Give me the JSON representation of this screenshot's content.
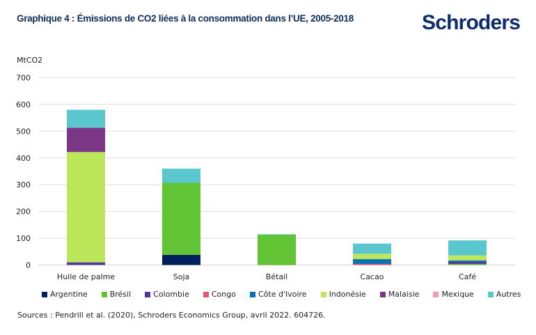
{
  "header": {
    "title": "Graphique 4 : Émissions de CO2 liées à la consommation dans l’UE, 2005-2018",
    "logo_text": "Schroders"
  },
  "source": "Sources : Pendrill et al. (2020), Schroders Economics Group, avril 2022. 604726.",
  "chart_data": {
    "type": "bar",
    "stacked": true,
    "title": "Graphique 4 : Émissions de CO2 liées à la consommation dans l’UE, 2005-2018",
    "xlabel": "",
    "ylabel": "MtCO2",
    "ylim": [
      0,
      700
    ],
    "yticks": [
      0,
      100,
      200,
      300,
      400,
      500,
      600,
      700
    ],
    "grid": true,
    "legend_position": "bottom",
    "categories": [
      "Huile de palme",
      "Soja",
      "Bétail",
      "Cacao",
      "Café"
    ],
    "series": [
      {
        "name": "Argentine",
        "color": "#00205b",
        "values": [
          0,
          38,
          0,
          0,
          0
        ]
      },
      {
        "name": "Brésil",
        "color": "#62c334",
        "values": [
          0,
          269,
          114,
          0,
          4
        ]
      },
      {
        "name": "Colombie",
        "color": "#5237a0",
        "values": [
          10,
          0,
          0,
          0,
          8
        ]
      },
      {
        "name": "Congo",
        "color": "#e3576f",
        "values": [
          0,
          0,
          0,
          4,
          0
        ]
      },
      {
        "name": "Côte d'Ivoire",
        "color": "#0a71b5",
        "values": [
          0,
          0,
          0,
          18,
          5
        ]
      },
      {
        "name": "Indonésie",
        "color": "#bce75b",
        "values": [
          412,
          0,
          0,
          20,
          19
        ]
      },
      {
        "name": "Malaisie",
        "color": "#7b3785",
        "values": [
          91,
          0,
          0,
          0,
          0
        ]
      },
      {
        "name": "Mexique",
        "color": "#f59aa6",
        "values": [
          0,
          0,
          0,
          0,
          0
        ]
      },
      {
        "name": "Autres",
        "color": "#5ac6cd",
        "values": [
          67,
          53,
          1,
          38,
          56
        ]
      }
    ]
  }
}
